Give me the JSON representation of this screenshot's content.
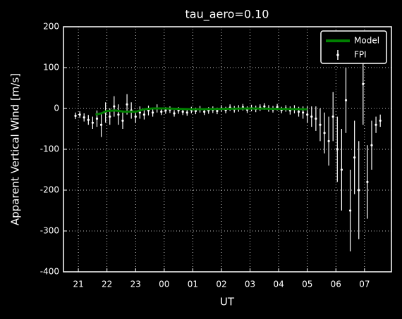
{
  "chart_data": {
    "type": "errorbar",
    "title": "tau_aero=0.10",
    "xlabel": "UT",
    "ylabel": "Apparent Vertical Wind [m/s]",
    "xlim": [
      20.48,
      31.94
    ],
    "ylim": [
      -400,
      200
    ],
    "xticks": [
      21,
      22,
      23,
      {
        "value": 24,
        "label": "00"
      },
      {
        "value": 25,
        "label": "01"
      },
      {
        "value": 26,
        "label": "02"
      },
      {
        "value": 27,
        "label": "03"
      },
      {
        "value": 28,
        "label": "04"
      },
      {
        "value": 29,
        "label": "05"
      },
      {
        "value": 30,
        "label": "06"
      },
      {
        "value": 31,
        "label": "07"
      }
    ],
    "yticks": [
      -400,
      -300,
      -200,
      -100,
      0,
      100,
      200
    ],
    "grid": true,
    "legend": "upper right",
    "series": [
      {
        "name": "Model",
        "color": "#007f00",
        "x": [
          21.6,
          21.8,
          22.0,
          22.3,
          22.6,
          23.0,
          23.3,
          23.6,
          24.0,
          25.0,
          26.0,
          27.0,
          28.0,
          29.0
        ],
        "values": [
          -15,
          -12,
          -6,
          -5,
          -8,
          -8,
          -2,
          0,
          0,
          -2,
          -1,
          0,
          -1,
          -2
        ]
      },
      {
        "name": "FPI",
        "color": "#ffffff",
        "x": [
          20.9,
          21.05,
          21.2,
          21.35,
          21.5,
          21.65,
          21.8,
          21.95,
          22.1,
          22.25,
          22.4,
          22.55,
          22.7,
          22.85,
          23.0,
          23.15,
          23.3,
          23.45,
          23.6,
          23.75,
          23.9,
          24.05,
          24.2,
          24.35,
          24.5,
          24.65,
          24.8,
          24.95,
          25.1,
          25.25,
          25.4,
          25.55,
          25.7,
          25.85,
          26.0,
          26.15,
          26.3,
          26.45,
          26.6,
          26.75,
          26.9,
          27.05,
          27.2,
          27.35,
          27.5,
          27.65,
          27.8,
          27.95,
          28.1,
          28.25,
          28.4,
          28.55,
          28.7,
          28.85,
          29.0,
          29.15,
          29.3,
          29.45,
          29.6,
          29.75,
          29.9,
          30.05,
          30.2,
          30.35,
          30.5,
          30.65,
          30.8,
          30.95,
          31.1,
          31.25,
          31.4,
          31.55
        ],
        "values": [
          -18,
          -15,
          -22,
          -28,
          -35,
          -25,
          -40,
          -10,
          -20,
          5,
          -15,
          -30,
          10,
          -5,
          -20,
          -10,
          -15,
          -5,
          -10,
          0,
          -8,
          -5,
          -3,
          -12,
          -5,
          -8,
          -10,
          -4,
          -6,
          -2,
          -8,
          -5,
          -3,
          -6,
          0,
          -4,
          2,
          -2,
          0,
          3,
          -3,
          1,
          -1,
          2,
          5,
          0,
          -2,
          3,
          -4,
          0,
          -5,
          -2,
          -8,
          -10,
          -15,
          -20,
          -25,
          -40,
          -60,
          -80,
          -20,
          -100,
          -150,
          20,
          -250,
          -120,
          -200,
          60,
          -180,
          -90,
          -40,
          -30
        ],
        "errors": [
          8,
          8,
          10,
          12,
          15,
          20,
          30,
          25,
          20,
          25,
          25,
          20,
          25,
          20,
          15,
          15,
          12,
          12,
          10,
          10,
          8,
          8,
          8,
          8,
          8,
          8,
          8,
          8,
          8,
          8,
          8,
          8,
          8,
          8,
          8,
          8,
          8,
          8,
          8,
          8,
          8,
          8,
          8,
          8,
          8,
          8,
          8,
          8,
          8,
          8,
          10,
          10,
          12,
          15,
          20,
          25,
          30,
          40,
          50,
          60,
          60,
          80,
          100,
          80,
          100,
          90,
          120,
          100,
          90,
          60,
          20,
          15
        ]
      }
    ]
  }
}
